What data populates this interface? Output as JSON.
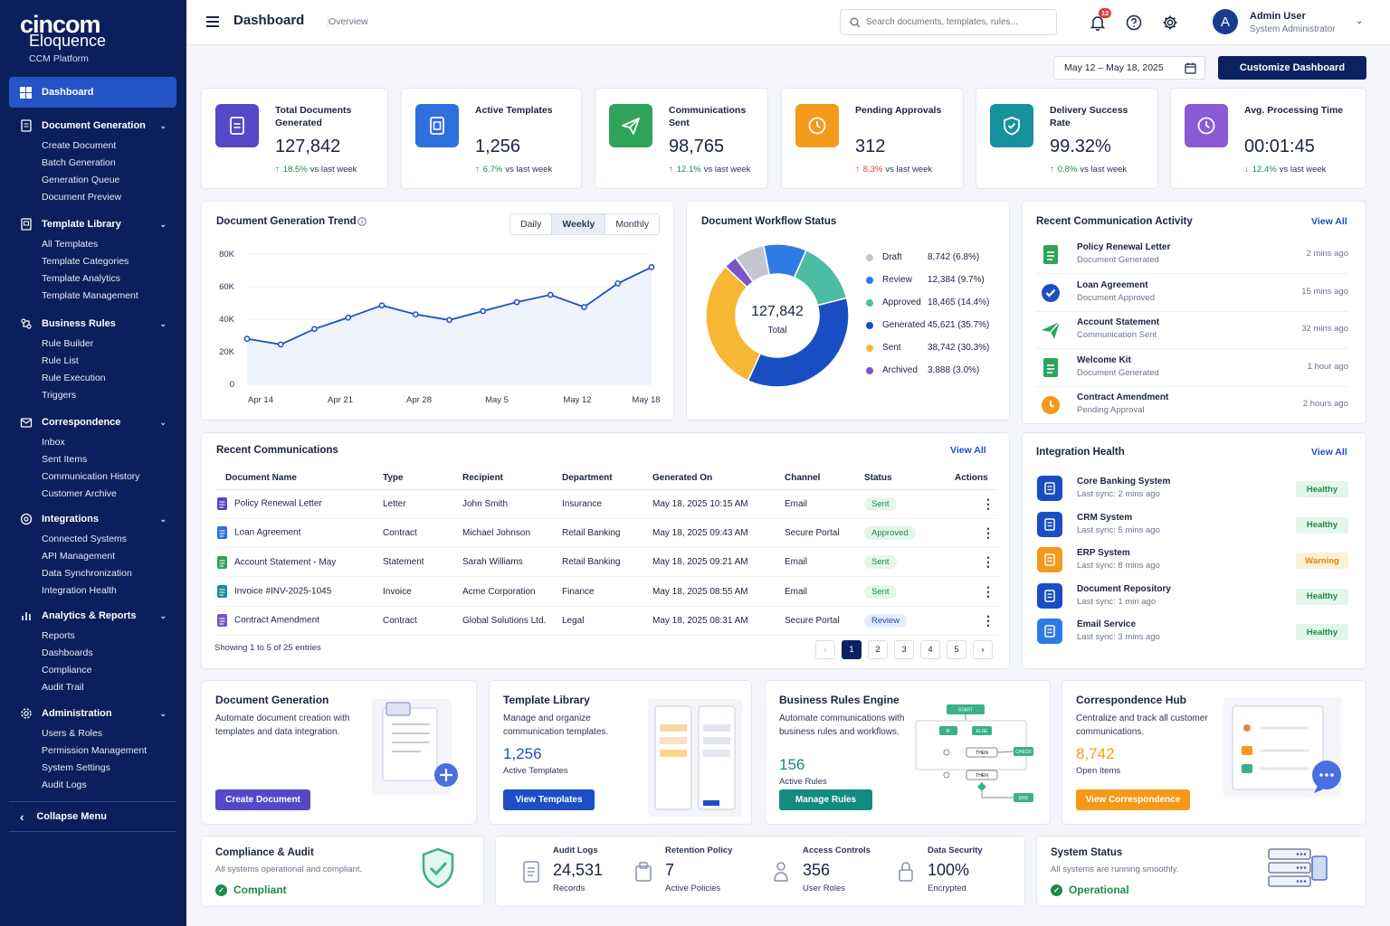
{
  "brand": {
    "line1": "cincom",
    "line2": "Eloquence",
    "line3": "CCM Platform"
  },
  "sidebar": {
    "dashboard": "Dashboard",
    "sections": [
      {
        "label": "Document Generation",
        "items": [
          "Create Document",
          "Batch Generation",
          "Generation Queue",
          "Document Preview"
        ]
      },
      {
        "label": "Template Library",
        "items": [
          "All Templates",
          "Template Categories",
          "Template Analytics",
          "Template Management"
        ]
      },
      {
        "label": "Business Rules",
        "items": [
          "Rule Builder",
          "Rule List",
          "Rule Execution",
          "Triggers"
        ]
      },
      {
        "label": "Correspondence",
        "items": [
          "Inbox",
          "Sent Items",
          "Communication History",
          "Customer Archive"
        ]
      },
      {
        "label": "Integrations",
        "items": [
          "Connected Systems",
          "API Management",
          "Data Synchronization",
          "Integration Health"
        ]
      },
      {
        "label": "Analytics & Reports",
        "items": [
          "Reports",
          "Dashboards",
          "Compliance",
          "Audit Trail"
        ]
      },
      {
        "label": "Administration",
        "items": [
          "Users & Roles",
          "Permission Management",
          "System Settings",
          "Audit Logs"
        ]
      }
    ],
    "collapse": "Collapse Menu"
  },
  "topbar": {
    "title": "Dashboard",
    "subtitle": "Overview",
    "search_placeholder": "Search documents, templates, rules...",
    "notif_count": "12",
    "user_name": "Admin User",
    "user_role": "System Administrator",
    "avatar": "A"
  },
  "toolbar": {
    "date_range": "May 12 – May 18, 2025",
    "customize": "Customize Dashboard"
  },
  "kpis": [
    {
      "title": "Total Documents Generated",
      "value": "127,842",
      "delta": "18.5%",
      "dir": "↑",
      "note": "vs last week",
      "color": "#5548c8"
    },
    {
      "title": "Active Templates",
      "value": "1,256",
      "delta": "6.7%",
      "dir": "↑",
      "note": "vs last week",
      "color": "#2e6fe0"
    },
    {
      "title": "Communications Sent",
      "value": "98,765",
      "delta": "12.1%",
      "dir": "↑",
      "note": "vs last week",
      "color": "#2ea45a"
    },
    {
      "title": "Pending Approvals",
      "value": "312",
      "delta": "8.3%",
      "dir": "↑",
      "note": "vs last week",
      "color": "#f49a1a"
    },
    {
      "title": "Delivery Success Rate",
      "value": "99.32%",
      "delta": "0.8%",
      "dir": "↑",
      "note": "vs last week",
      "color": "#17919e"
    },
    {
      "title": "Avg. Processing Time",
      "value": "00:01:45",
      "delta": "12.4%",
      "dir": "↓",
      "note": "vs last week",
      "color": "#8a5ad6"
    }
  ],
  "trend": {
    "title": "Document Generation Trend",
    "tabs": [
      "Daily",
      "Weekly",
      "Monthly"
    ],
    "active_tab": "Weekly"
  },
  "chart_data": {
    "type": "line",
    "title": "Document Generation Trend",
    "x_tick_labels": [
      "Apr 14",
      "Apr 21",
      "Apr 28",
      "May 5",
      "May 12",
      "May 18"
    ],
    "y_tick_labels": [
      "0",
      "20K",
      "40K",
      "60K",
      "80K"
    ],
    "ylim": [
      0,
      80000
    ],
    "series": [
      {
        "values": [
          28000,
          24500,
          34000,
          41000,
          48500,
          43000,
          39500,
          45000,
          50500,
          55000,
          47500,
          62000,
          72000
        ]
      }
    ]
  },
  "workflow": {
    "title": "Document Workflow Status",
    "total": "127,842",
    "total_label": "Total",
    "segments": [
      {
        "label": "Draft",
        "value": "8,742 (6.8%)",
        "pct": 6.8,
        "color": "#c3c6cf"
      },
      {
        "label": "Review",
        "value": "12,384 (9.7%)",
        "pct": 9.7,
        "color": "#2e7be6"
      },
      {
        "label": "Approved",
        "value": "18,465 (14.4%)",
        "pct": 14.4,
        "color": "#4cbca3"
      },
      {
        "label": "Generated",
        "value": "45,621 (35.7%)",
        "pct": 35.7,
        "color": "#1a4dc2"
      },
      {
        "label": "Sent",
        "value": "38,742 (30.3%)",
        "pct": 30.3,
        "color": "#f7b634"
      },
      {
        "label": "Archived",
        "value": "3,888 (3.0%)",
        "pct": 3.0,
        "color": "#7a54c8"
      }
    ]
  },
  "activity": {
    "title": "Recent Communication Activity",
    "view_all": "View All",
    "items": [
      {
        "title": "Policy Renewal Letter",
        "sub": "Document Generated",
        "time": "2 mins ago",
        "icon": "doc-green-icon"
      },
      {
        "title": "Loan Agreement",
        "sub": "Document Approved",
        "time": "15 mins ago",
        "icon": "check-blue-icon"
      },
      {
        "title": "Account Statement",
        "sub": "Communication Sent",
        "time": "32 mins ago",
        "icon": "send-green-icon"
      },
      {
        "title": "Welcome Kit",
        "sub": "Document Generated",
        "time": "1 hour ago",
        "icon": "doc-green-icon"
      },
      {
        "title": "Contract Amendment",
        "sub": "Pending Approval",
        "time": "2 hours ago",
        "icon": "clock-orange-icon"
      }
    ]
  },
  "communications": {
    "title": "Recent Communications",
    "view_all": "View All",
    "columns": [
      "Document Name",
      "Type",
      "Recipient",
      "Department",
      "Generated On",
      "Channel",
      "Status",
      "Actions"
    ],
    "rows": [
      {
        "name": "Policy Renewal Letter",
        "type": "Letter",
        "recipient": "John Smith",
        "department": "Insurance",
        "generated": "May 18, 2025 10:15 AM",
        "channel": "Email",
        "status": "Sent",
        "icon_color": "#5548c8"
      },
      {
        "name": "Loan Agreement",
        "type": "Contract",
        "recipient": "Michael Johnson",
        "department": "Retail Banking",
        "generated": "May 18, 2025 09:43 AM",
        "channel": "Secure Portal",
        "status": "Approved",
        "icon_color": "#2e6fe0"
      },
      {
        "name": "Account Statement - May",
        "type": "Statement",
        "recipient": "Sarah Williams",
        "department": "Retail Banking",
        "generated": "May 18, 2025 09:21 AM",
        "channel": "Email",
        "status": "Sent",
        "icon_color": "#2ea45a"
      },
      {
        "name": "Invoice #INV-2025-1045",
        "type": "Invoice",
        "recipient": "Acme Corporation",
        "department": "Finance",
        "generated": "May 18, 2025 08:55 AM",
        "channel": "Email",
        "status": "Sent",
        "icon_color": "#17919e"
      },
      {
        "name": "Contract Amendment",
        "type": "Contract",
        "recipient": "Global Solutions Ltd.",
        "department": "Legal",
        "generated": "May 18, 2025 08:31 AM",
        "channel": "Secure Portal",
        "status": "Review",
        "icon_color": "#7a54c8"
      }
    ],
    "showing": "Showing 1 to 5 of 25 entries",
    "pages": [
      "1",
      "2",
      "3",
      "4",
      "5"
    ]
  },
  "integration": {
    "title": "Integration Health",
    "view_all": "View All",
    "items": [
      {
        "name": "Core Banking System",
        "sync": "Last sync: 2 mins ago",
        "status": "Healthy",
        "color": "#1a4dc2"
      },
      {
        "name": "CRM System",
        "sync": "Last sync: 5 mins ago",
        "status": "Healthy",
        "color": "#1a4dc2"
      },
      {
        "name": "ERP System",
        "sync": "Last sync: 8 mins ago",
        "status": "Warning",
        "color": "#f49a1a"
      },
      {
        "name": "Document Repository",
        "sync": "Last sync: 1 min ago",
        "status": "Healthy",
        "color": "#1a4dc2"
      },
      {
        "name": "Email Service",
        "sync": "Last sync: 3 mins ago",
        "status": "Healthy",
        "color": "#2e7be6"
      }
    ]
  },
  "modules": [
    {
      "title": "Document Generation",
      "desc": "Automate document creation with templates and data integration.",
      "value": "",
      "label": "",
      "button": "Create Document",
      "color": "#5548c8"
    },
    {
      "title": "Template Library",
      "desc": "Manage and organize communication templates.",
      "value": "1,256",
      "label": "Active Templates",
      "button": "View Templates",
      "color": "#1c4fc4"
    },
    {
      "title": "Business Rules Engine",
      "desc": "Automate communications with business rules and workflows.",
      "value": "156",
      "label": "Active Rules",
      "button": "Manage Rules",
      "color": "#158a7e"
    },
    {
      "title": "Correspondence Hub",
      "desc": "Centralize and track all customer communications.",
      "value": "8,742",
      "label": "Open Items",
      "button": "View Correspondence",
      "color": "#f49a1a"
    }
  ],
  "diagram_labels": {
    "rules_start": "START",
    "rules_if": "IF",
    "rules_else": "ELSE",
    "rules_then1": "THEN",
    "rules_then2": "THEN",
    "rules_check": "CHECK",
    "rules_end": "END"
  },
  "compliance": {
    "title": "Compliance & Audit",
    "sub": "All systems operational and compliant.",
    "status": "Compliant"
  },
  "audit_stats": [
    {
      "label": "Audit Logs",
      "value": "24,531",
      "sub": "Records"
    },
    {
      "label": "Retention Policy",
      "value": "7",
      "sub": "Active Policies"
    },
    {
      "label": "Access Controls",
      "value": "356",
      "sub": "User Roles"
    },
    {
      "label": "Data Security",
      "value": "100%",
      "sub": "Encrypted"
    }
  ],
  "system": {
    "title": "System Status",
    "sub": "All systems are running smoothly.",
    "status": "Operational"
  }
}
